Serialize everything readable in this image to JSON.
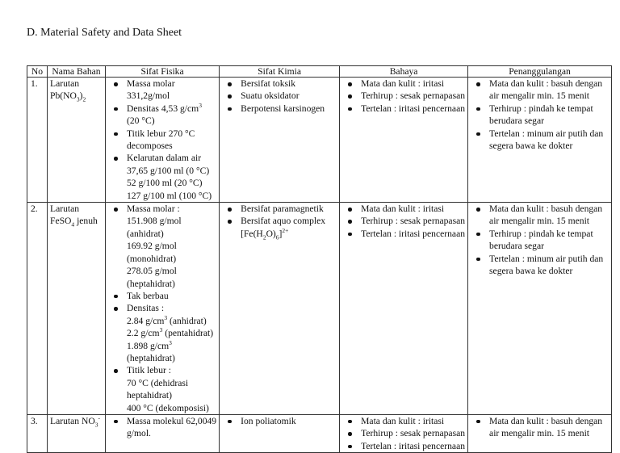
{
  "title": "D. Material Safety and Data Sheet",
  "headers": [
    "No",
    "Nama Bahan",
    "Sifat Fisika",
    "Sifat Kimia",
    "Bahaya",
    "Penanggulangan"
  ],
  "rows": [
    {
      "no": "1.",
      "name": [
        [
          "Larutan"
        ],
        [
          "Pb(NO",
          {
            "sub": "3"
          },
          ")",
          {
            "sub": "2"
          }
        ]
      ],
      "fisika": [
        [
          [
            "Massa molar"
          ],
          [
            "331,2g/mol"
          ]
        ],
        [
          [
            "Densitas 4,53 g/cm",
            {
              "sup": "3"
            }
          ],
          [
            "(20 °C)"
          ]
        ],
        [
          [
            "Titik lebur 270 °C"
          ],
          [
            "decomposes"
          ]
        ],
        [
          [
            "Kelarutan dalam air"
          ],
          [
            "37,65 g/100 ml (0 °C)"
          ],
          [
            "52 g/100 ml (20 °C)"
          ],
          [
            "127 g/100 ml (100 °C)"
          ]
        ]
      ],
      "kimia": [
        [
          [
            "Bersifat toksik"
          ]
        ],
        [
          [
            "Suatu oksidator"
          ]
        ],
        [
          [
            "Berpotensi karsinogen"
          ]
        ]
      ],
      "bahaya": [
        [
          [
            "Mata dan kulit : iritasi"
          ]
        ],
        [
          [
            "Terhirup : sesak pernapasan"
          ]
        ],
        [
          [
            "Tertelan : iritasi pencernaan"
          ]
        ]
      ],
      "penanggulangan": [
        [
          [
            "Mata dan kulit : basuh dengan"
          ],
          [
            "air mengalir min. 15 menit"
          ]
        ],
        [
          [
            "Terhirup : pindah ke tempat"
          ],
          [
            "berudara segar"
          ]
        ],
        [
          [
            "Tertelan : minum air putih dan"
          ],
          [
            "segera bawa ke dokter"
          ]
        ]
      ]
    },
    {
      "no": "2.",
      "name": [
        [
          "Larutan"
        ],
        [
          "FeSO",
          {
            "sub": "4"
          },
          " jenuh"
        ]
      ],
      "fisika": [
        [
          [
            "Massa molar :"
          ],
          [
            "151.908 g/mol"
          ],
          [
            "(anhidrat)"
          ],
          [
            "169.92 g/mol"
          ],
          [
            "(monohidrat)"
          ],
          [
            "278.05 g/mol"
          ],
          [
            "(heptahidrat)"
          ]
        ],
        [
          [
            "Tak berbau"
          ]
        ],
        [
          [
            "Densitas :"
          ],
          [
            "2.84 g/cm",
            {
              "sup": "3"
            },
            " (anhidrat)"
          ],
          [
            "2.2 g/cm",
            {
              "sup": "3"
            },
            " (pentahidrat)"
          ],
          [
            "1.898 g/cm",
            {
              "sup": "3"
            }
          ],
          [
            "(heptahidrat)"
          ]
        ],
        [
          [
            "Titik lebur :"
          ],
          [
            "70 °C (dehidrasi"
          ],
          [
            "heptahidrat)"
          ],
          [
            "400 °C (dekomposisi)"
          ]
        ]
      ],
      "kimia": [
        [
          [
            "Bersifat paramagnetik"
          ]
        ],
        [
          [
            "Bersifat aquo complex"
          ],
          [
            "[Fe(H",
            {
              "sub": "2"
            },
            "O)",
            {
              "sub": "6"
            },
            "]",
            {
              "sup": "2+"
            }
          ]
        ]
      ],
      "bahaya": [
        [
          [
            "Mata dan kulit : iritasi"
          ]
        ],
        [
          [
            "Terhirup : sesak pernapasan"
          ]
        ],
        [
          [
            "Tertelan : iritasi pencernaan"
          ]
        ]
      ],
      "penanggulangan": [
        [
          [
            "Mata dan kulit : basuh dengan"
          ],
          [
            "air mengalir min. 15 menit"
          ]
        ],
        [
          [
            "Terhirup : pindah ke tempat"
          ],
          [
            "berudara segar"
          ]
        ],
        [
          [
            "Tertelan : minum air putih dan"
          ],
          [
            "segera bawa ke dokter"
          ]
        ]
      ]
    },
    {
      "no": "3.",
      "name": [
        [
          "Larutan NO",
          {
            "sub": "3"
          },
          {
            "sup": "-"
          }
        ]
      ],
      "fisika": [
        [
          [
            "Massa molekul 62,0049"
          ],
          [
            "g/mol."
          ]
        ]
      ],
      "kimia": [
        [
          [
            "Ion poliatomik"
          ]
        ]
      ],
      "bahaya": [
        [
          [
            "Mata dan kulit : iritasi"
          ]
        ],
        [
          [
            "Terhirup : sesak pernapasan"
          ]
        ],
        [
          [
            "Tertelan : iritasi pencernaan"
          ]
        ]
      ],
      "penanggulangan": [
        [
          [
            "Mata dan kulit : basuh dengan"
          ],
          [
            "air mengalir min. 15 menit"
          ]
        ]
      ]
    }
  ]
}
